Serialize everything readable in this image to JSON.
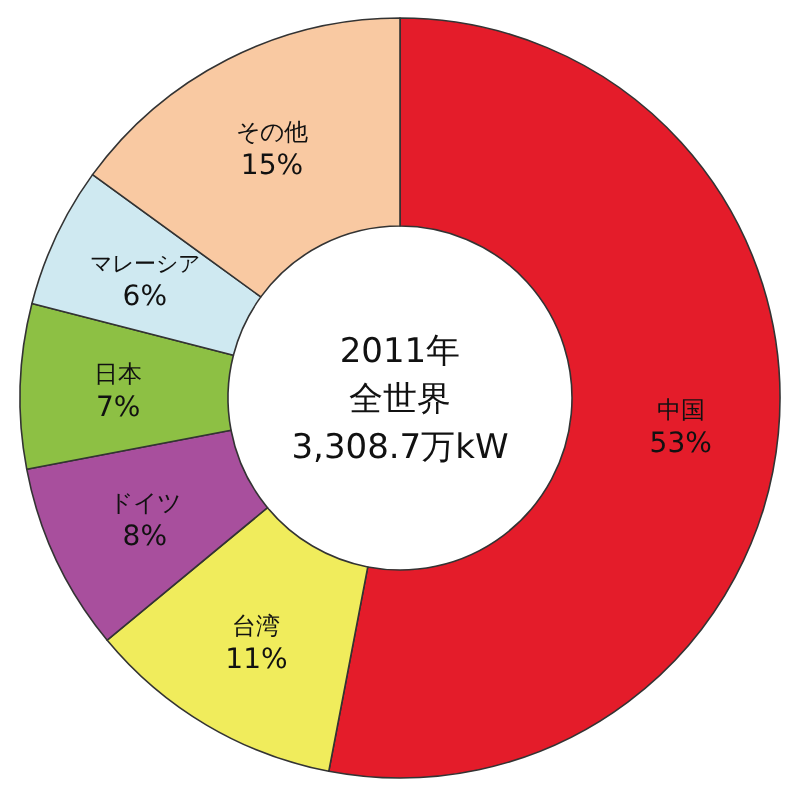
{
  "chart_data": {
    "type": "donut",
    "title": "2011年",
    "subtitle": "全世界",
    "annotations": [
      "3,308.7万kW"
    ],
    "categories": [
      "中国",
      "台湾",
      "ドイツ",
      "日本",
      "マレーシア",
      "その他"
    ],
    "values": [
      53,
      11,
      8,
      7,
      6,
      15
    ],
    "colors": [
      "#e41c2a",
      "#f0ec5c",
      "#a84f9d",
      "#8dc044",
      "#cfe9f1",
      "#f9c9a2"
    ],
    "value_labels": [
      "53%",
      "11%",
      "8%",
      "7%",
      "6%",
      "15%"
    ]
  }
}
